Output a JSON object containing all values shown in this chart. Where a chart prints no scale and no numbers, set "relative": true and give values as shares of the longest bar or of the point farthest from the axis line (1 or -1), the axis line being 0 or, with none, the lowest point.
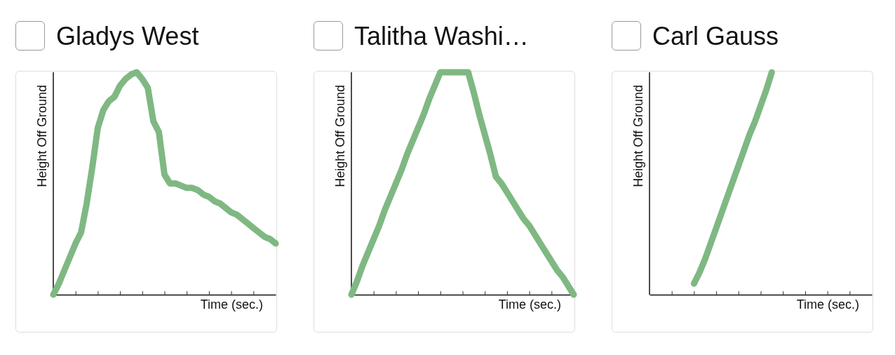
{
  "chart_data": [
    {
      "type": "line",
      "title": "Gladys West",
      "xlabel": "Time (sec.)",
      "ylabel": "Height Off Ground",
      "relative": true,
      "color": "#7fb883",
      "categories": [
        null,
        null,
        null,
        null,
        null,
        null,
        null,
        null,
        null,
        null,
        null,
        null,
        null,
        null,
        null,
        null,
        null,
        null,
        null,
        null,
        null,
        null,
        null,
        null,
        null,
        null,
        null,
        null,
        null,
        null,
        null,
        null,
        null,
        null,
        null,
        null,
        null,
        null,
        null,
        null,
        null
      ],
      "values": [
        0,
        0.05,
        0.11,
        0.17,
        0.23,
        0.28,
        0.41,
        0.57,
        0.75,
        0.83,
        0.87,
        0.89,
        0.94,
        0.97,
        0.99,
        1,
        0.97,
        0.93,
        0.78,
        0.73,
        0.54,
        0.5,
        0.5,
        0.49,
        0.48,
        0.48,
        0.47,
        0.45,
        0.44,
        0.42,
        0.41,
        0.39,
        0.37,
        0.36,
        0.34,
        0.32,
        0.3,
        0.28,
        0.26,
        0.25,
        0.23
      ]
    },
    {
      "type": "line",
      "title": "Talitha Washi…",
      "xlabel": "Time (sec.)",
      "ylabel": "Height Off Ground",
      "relative": true,
      "color": "#7fb883",
      "categories": [
        null,
        null,
        null,
        null,
        null,
        null,
        null,
        null,
        null,
        null,
        null,
        null,
        null,
        null,
        null,
        null,
        null,
        null,
        null,
        null,
        null,
        null,
        null,
        null,
        null,
        null,
        null,
        null,
        null,
        null,
        null,
        null,
        null,
        null,
        null,
        null,
        null,
        null,
        null,
        null,
        null
      ],
      "values": [
        0,
        0.06,
        0.13,
        0.19,
        0.25,
        0.31,
        0.38,
        0.44,
        0.5,
        0.56,
        0.63,
        0.69,
        0.75,
        0.81,
        0.88,
        0.94,
        1,
        1,
        1,
        1,
        1,
        1,
        0.91,
        0.81,
        0.72,
        0.63,
        0.53,
        0.5,
        0.46,
        0.42,
        0.38,
        0.34,
        0.31,
        0.27,
        0.23,
        0.19,
        0.15,
        0.11,
        0.08,
        0.04,
        0
      ]
    },
    {
      "type": "line",
      "title": "Carl Gauss",
      "xlabel": "Time (sec.)",
      "ylabel": "Height Off Ground",
      "relative": true,
      "color": "#7fb883",
      "categories": [
        null,
        null,
        null,
        null,
        null,
        null,
        null,
        null,
        null,
        null,
        null,
        null,
        null,
        null,
        null,
        null,
        null,
        null,
        null,
        null,
        null,
        null,
        null,
        null,
        null,
        null,
        null,
        null,
        null,
        null,
        null,
        null,
        null,
        null,
        null,
        null,
        null,
        null,
        null,
        null,
        null
      ],
      "values": [
        null,
        null,
        null,
        null,
        null,
        null,
        null,
        null,
        0.05,
        0.1,
        0.16,
        0.23,
        0.3,
        0.37,
        0.44,
        0.51,
        0.58,
        0.65,
        0.72,
        0.78,
        0.85,
        0.92,
        1,
        null,
        null,
        null,
        null,
        null,
        null,
        null,
        null,
        null,
        null,
        null,
        null,
        null,
        null,
        null,
        null,
        null,
        null
      ]
    }
  ]
}
